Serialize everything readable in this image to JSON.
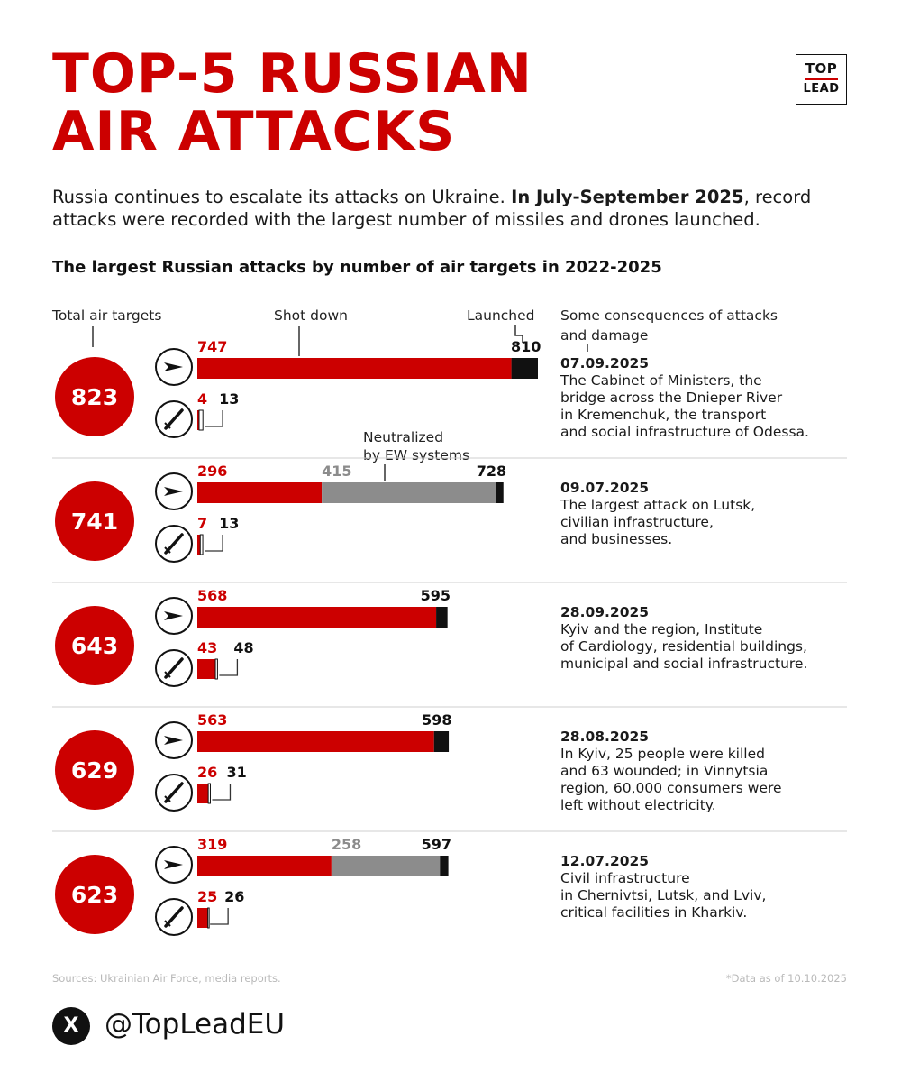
{
  "title_line1": "TOP-5 RUSSIAN",
  "title_line2": "AIR ATTACKS",
  "logo": {
    "top": "TOP",
    "bottom": "LEAD"
  },
  "intro": {
    "part1": "Russia continues to escalate its attacks on Ukraine. ",
    "bold": "In July-September 2025",
    "part2": ", record attacks were recorded with the largest number of missiles and drones launched."
  },
  "subtitle": "The largest Russian attacks by number of air targets in 2022-2025",
  "headers": {
    "total": "Total air targets",
    "shot_down": "Shot down",
    "launched": "Launched",
    "neutralized_line1": "Neutralized",
    "neutralized_line2": "by EW systems",
    "consequences_line1": "Some consequences of attacks",
    "consequences_line2": "and damage"
  },
  "colors": {
    "red": "#cc0000",
    "grey": "#8c8c8c",
    "black": "#111111"
  },
  "icons": {
    "drone": "drone-icon",
    "missile": "missile-icon"
  },
  "chart_data": {
    "type": "bar",
    "attacks": [
      {
        "total": 823,
        "drones": {
          "shot_down": 747,
          "neutralized": null,
          "launched": 810
        },
        "missiles": {
          "shot_down": 4,
          "launched": 13
        },
        "date": "07.09.2025",
        "consequences": [
          "The Cabinet of Ministers, the",
          "bridge across the Dnieper River",
          "in Kremenchuk, the transport",
          "and social infrastructure of Odessa."
        ]
      },
      {
        "total": 741,
        "drones": {
          "shot_down": 296,
          "neutralized": 415,
          "launched": 728
        },
        "missiles": {
          "shot_down": 7,
          "launched": 13
        },
        "date": "09.07.2025",
        "consequences": [
          "The largest attack on Lutsk,",
          "civilian infrastructure,",
          "and businesses."
        ]
      },
      {
        "total": 643,
        "drones": {
          "shot_down": 568,
          "neutralized": null,
          "launched": 595
        },
        "missiles": {
          "shot_down": 43,
          "launched": 48
        },
        "date": "28.09.2025",
        "consequences": [
          "Kyiv and the region, Institute",
          "of Cardiology, residential buildings,",
          "municipal and social infrastructure."
        ]
      },
      {
        "total": 629,
        "drones": {
          "shot_down": 563,
          "neutralized": null,
          "launched": 598
        },
        "missiles": {
          "shot_down": 26,
          "launched": 31
        },
        "date": "28.08.2025",
        "consequences": [
          "In Kyiv, 25 people were killed",
          "and 63 wounded; in Vinnytsia",
          "region, 60,000 consumers were",
          "left without electricity."
        ]
      },
      {
        "total": 623,
        "drones": {
          "shot_down": 319,
          "neutralized": 258,
          "launched": 597
        },
        "missiles": {
          "shot_down": 25,
          "launched": 26
        },
        "date": "12.07.2025",
        "consequences": [
          "Civil infrastructure",
          "in Chernivtsi, Lutsk, and Lviv,",
          "critical facilities in Kharkiv."
        ]
      }
    ]
  },
  "footer": {
    "sources": "Sources: Ukrainian Air Force, media reports.",
    "as_of": "*Data as of 10.10.2025",
    "x_icon": "X",
    "handle": "@TopLeadEU"
  }
}
